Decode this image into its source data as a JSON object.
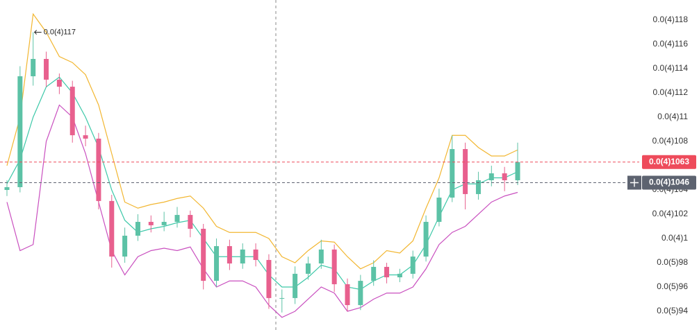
{
  "chart_data": {
    "type": "candlestick",
    "ylim": [
      9.2457e-06,
      1.19657e-05
    ],
    "yticks": [
      {
        "value": 1.18e-05,
        "label": "0.0(4)118"
      },
      {
        "value": 1.16e-05,
        "label": "0.0(4)116"
      },
      {
        "value": 1.14e-05,
        "label": "0.0(4)114"
      },
      {
        "value": 1.12e-05,
        "label": "0.0(4)112"
      },
      {
        "value": 1.1e-05,
        "label": "0.0(4)11"
      },
      {
        "value": 1.08e-05,
        "label": "0.0(4)108"
      },
      {
        "value": 1.04e-05,
        "label": "0.0(4)104"
      },
      {
        "value": 1.02e-05,
        "label": "0.0(4)102"
      },
      {
        "value": 1e-05,
        "label": "0.0(4)1"
      },
      {
        "value": 9.8e-06,
        "label": "0.0(5)98"
      },
      {
        "value": 9.6e-06,
        "label": "0.0(5)96"
      },
      {
        "value": 9.4e-06,
        "label": "0.0(5)94"
      }
    ],
    "up_color": "#5cc2a6",
    "down_color": "#e8608e",
    "candles": {
      "open": [
        1.04e-05,
        1.0423e-05,
        1.1337e-05,
        1.148e-05,
        1.1309e-05,
        1.1251e-05,
        1.0851e-05,
        1.0823e-05,
        1.0309e-05,
        9.851e-06,
        1.0023e-05,
        1.0137e-05,
        1.0109e-05,
        1.0137e-05,
        1.0194e-05,
        1.008e-05,
        9.651e-06,
        9.937e-06,
        9.794e-06,
        9.909e-06,
        9.823e-06,
        9.509e-06,
        9.509e-06,
        9.709e-06,
        9.794e-06,
        9.909e-06,
        9.623e-06,
        9.451e-06,
        9.651e-06,
        9.766e-06,
        9.68e-06,
        9.709e-06,
        9.851e-06,
        1.0137e-05,
        1.0337e-05,
        1.0737e-05,
        1.0366e-05,
        1.048e-05,
        1.0537e-05,
        1.048e-05
      ],
      "high": [
        1.048e-05,
        1.142e-05,
        1.17e-05,
        1.154e-05,
        1.136e-05,
        1.13e-05,
        1.093e-05,
        1.087e-05,
        1.036e-05,
        1.009e-05,
        1.02e-05,
        1.019e-05,
        1.022e-05,
        1.026e-05,
        1.023e-05,
        1.012e-05,
        1e-05,
        9.99e-06,
        9.96e-06,
        9.96e-06,
        9.87e-06,
        9.58e-06,
        9.77e-06,
        9.85e-06,
        9.99e-06,
        9.95e-06,
        9.67e-06,
        9.7e-06,
        9.82e-06,
        9.8e-06,
        9.75e-06,
        9.9e-06,
        1.019e-05,
        1.041e-05,
        1.085e-05,
        1.079e-05,
        1.055e-05,
        1.06e-05,
        1.059e-05,
        1.079e-05
      ],
      "low": [
        1.035e-05,
        1.038e-05,
        1.126e-05,
        1.125e-05,
        1.119e-05,
        1.079e-05,
        1.076e-05,
        1.024e-05,
        9.76e-06,
        9.8e-06,
        9.98e-06,
        1.005e-05,
        1.006e-05,
        1.009e-05,
        1.001e-05,
        9.58e-06,
        9.6e-06,
        9.74e-06,
        9.75e-06,
        9.77e-06,
        9.42e-06,
        9.39e-06,
        9.46e-06,
        9.66e-06,
        9.75e-06,
        9.56e-06,
        9.4e-06,
        9.41e-06,
        9.61e-06,
        9.63e-06,
        9.64e-06,
        9.67e-06,
        9.81e-06,
        1.01e-05,
        1.03e-05,
        1.024e-05,
        1.032e-05,
        1.043e-05,
        1.039e-05,
        1.044e-05
      ],
      "close": [
        1.0423e-05,
        1.1337e-05,
        1.148e-05,
        1.1309e-05,
        1.1251e-05,
        1.0851e-05,
        1.0823e-05,
        1.0309e-05,
        9.851e-06,
        1.0023e-05,
        1.0137e-05,
        1.0109e-05,
        1.0137e-05,
        1.0194e-05,
        1.008e-05,
        9.651e-06,
        9.937e-06,
        9.794e-06,
        9.909e-06,
        9.823e-06,
        9.509e-06,
        9.509e-06,
        9.709e-06,
        9.794e-06,
        9.909e-06,
        9.623e-06,
        9.451e-06,
        9.651e-06,
        9.766e-06,
        9.68e-06,
        9.709e-06,
        9.851e-06,
        1.0137e-05,
        1.0337e-05,
        1.0737e-05,
        1.0366e-05,
        1.048e-05,
        1.0537e-05,
        1.048e-05,
        1.063e-05
      ]
    },
    "overlays": [
      {
        "color": "#f2b630",
        "values": [
          1.06e-05,
          1.1e-05,
          1.185e-05,
          1.17e-05,
          1.15e-05,
          1.145e-05,
          1.135e-05,
          1.11e-05,
          1.07e-05,
          1.03e-05,
          1.025e-05,
          1.028e-05,
          1.03e-05,
          1.033e-05,
          1.035e-05,
          1.025e-05,
          1.01e-05,
          1.005e-05,
          1.005e-05,
          1.005e-05,
          1e-05,
          9.85e-06,
          9.8e-06,
          9.9e-06,
          9.98e-06,
          9.97e-06,
          9.85e-06,
          9.75e-06,
          9.8e-06,
          9.9e-06,
          9.88e-06,
          9.98e-06,
          1.025e-05,
          1.05e-05,
          1.085e-05,
          1.085e-05,
          1.075e-05,
          1.068e-05,
          1.068e-05,
          1.073e-05
        ]
      },
      {
        "color": "#3cc8a8",
        "values": [
          1.045e-05,
          1.065e-05,
          1.1e-05,
          1.125e-05,
          1.133e-05,
          1.12e-05,
          1.1e-05,
          1.075e-05,
          1.04e-05,
          1.015e-05,
          1.005e-05,
          1.008e-05,
          1.01e-05,
          1.013e-05,
          1.015e-05,
          1e-05,
          9.85e-06,
          9.85e-06,
          9.85e-06,
          9.85e-06,
          9.7e-06,
          9.6e-06,
          9.6e-06,
          9.68e-06,
          9.78e-06,
          9.75e-06,
          9.6e-06,
          9.58e-06,
          9.65e-06,
          9.7e-06,
          9.7e-06,
          9.78e-06,
          9.95e-06,
          1.018e-05,
          1.04e-05,
          1.045e-05,
          1.045e-05,
          1.05e-05,
          1.05e-05,
          1.055e-05
        ]
      },
      {
        "color": "#c94fbf",
        "values": [
          1.03e-05,
          9.9e-06,
          9.95e-06,
          1.08e-05,
          1.11e-05,
          1.1e-05,
          1.07e-05,
          1.03e-05,
          9.9e-06,
          9.7e-06,
          9.85e-06,
          9.9e-06,
          9.92e-06,
          9.9e-06,
          9.93e-06,
          9.75e-06,
          9.6e-06,
          9.65e-06,
          9.65e-06,
          9.6e-06,
          9.45e-06,
          9.35e-06,
          9.4e-06,
          9.5e-06,
          9.6e-06,
          9.55e-06,
          9.4e-06,
          9.43e-06,
          9.5e-06,
          9.55e-06,
          9.55e-06,
          9.6e-06,
          9.75e-06,
          9.95e-06,
          1.005e-05,
          1.01e-05,
          1.02e-05,
          1.03e-05,
          1.035e-05,
          1.038e-05
        ]
      }
    ],
    "price_lines": [
      {
        "value": 1.063e-05,
        "label": "0.0(4)1063",
        "color": "#ee4b5b"
      },
      {
        "value": 1.046e-05,
        "label": "0.0(4)1046",
        "color": "#5d6370"
      }
    ],
    "annotation": {
      "value": 1.17e-05,
      "label": "0.0(4)117"
    }
  }
}
